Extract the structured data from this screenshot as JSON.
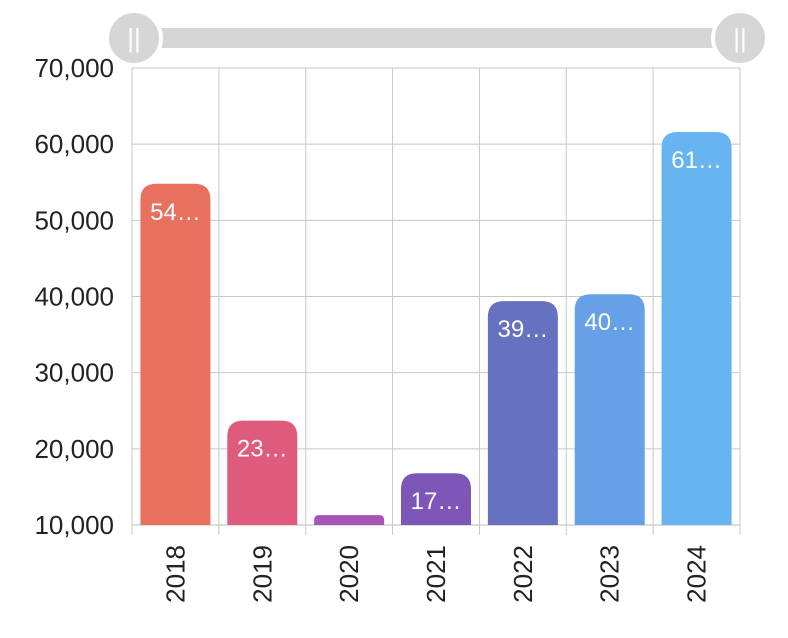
{
  "chart_data": {
    "type": "bar",
    "categories": [
      "2018",
      "2019",
      "2020",
      "2021",
      "2022",
      "2023",
      "2024"
    ],
    "values": [
      54800,
      23700,
      11300,
      16800,
      39400,
      40300,
      61600
    ],
    "data_labels": [
      "54…",
      "23…",
      "",
      "17…",
      "39…",
      "40…",
      "61…"
    ],
    "colors": [
      "#E8705F",
      "#DF5B7B",
      "#A556B8",
      "#7E56B8",
      "#6672C0",
      "#66A0E8",
      "#68B4F0"
    ],
    "ylim": [
      10000,
      70000
    ],
    "y_ticks": [
      "10,000",
      "20,000",
      "30,000",
      "40,000",
      "50,000",
      "60,000",
      "70,000"
    ],
    "y_tick_values": [
      10000,
      20000,
      30000,
      40000,
      50000,
      60000,
      70000
    ],
    "grid": true,
    "title": "",
    "xlabel": "",
    "ylabel": ""
  },
  "range_slider": {
    "start": 0,
    "end": 1,
    "left_handle_icon": "grip-icon",
    "right_handle_icon": "grip-icon",
    "handle_glyph": "||"
  }
}
